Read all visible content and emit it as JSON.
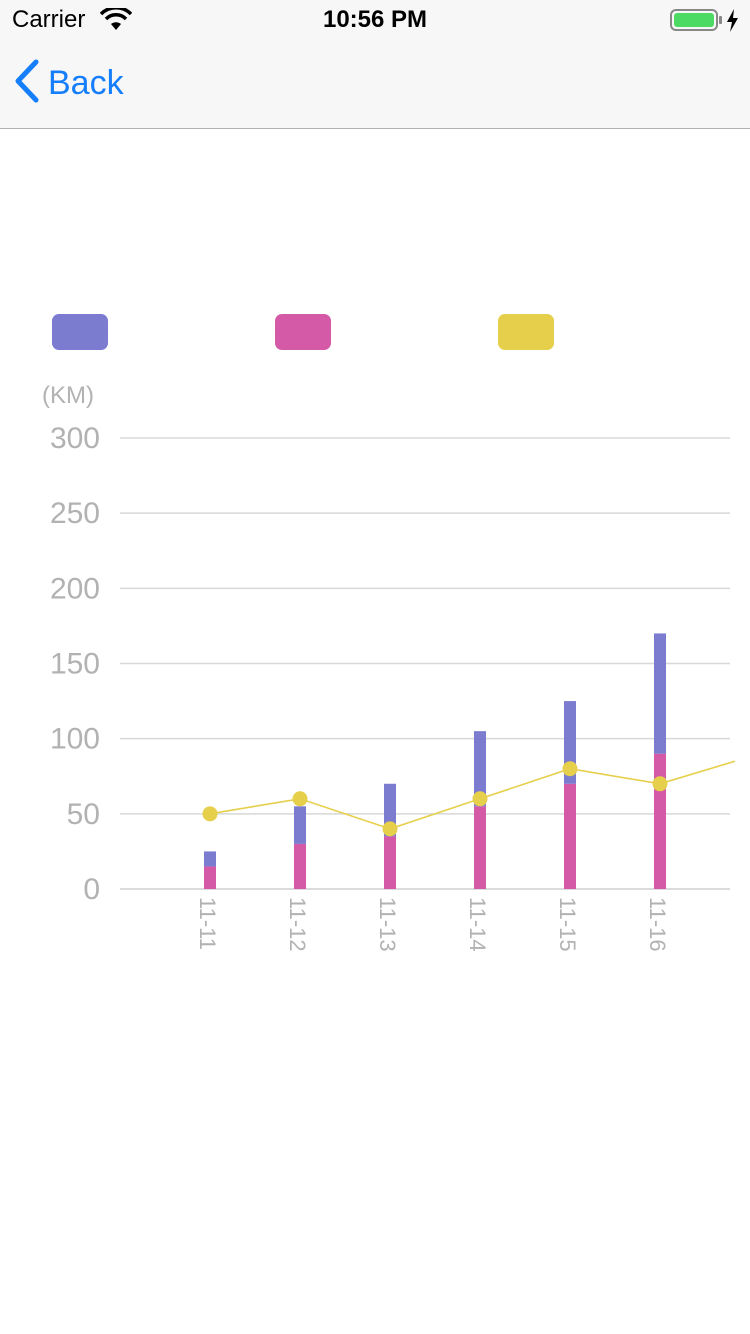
{
  "status_bar": {
    "carrier": "Carrier",
    "time": "10:56 PM",
    "battery_icon": "battery-charging-icon",
    "wifi_icon": "wifi-icon"
  },
  "nav": {
    "back_label": "Back",
    "back_icon": "chevron-left-icon"
  },
  "colors": {
    "accent": "#157efb",
    "series_purple": "#7b7bd0",
    "series_pink": "#d45aa8",
    "series_yellow": "#e6cf4a",
    "grid": "#d8d8d8",
    "axis_text": "#b2b2b2"
  },
  "chart_data": {
    "type": "bar",
    "ylabel": "(KM)",
    "ylim": [
      0,
      300
    ],
    "yticks": [
      "300",
      "250",
      "200",
      "150",
      "100",
      "50",
      "0"
    ],
    "categories": [
      "11-11",
      "11-12",
      "11-13",
      "11-14",
      "11-15",
      "11-16"
    ],
    "stacked": true,
    "series": [
      {
        "type": "bar",
        "color": "#d45aa8",
        "values": [
          15,
          30,
          35,
          55,
          70,
          90
        ]
      },
      {
        "type": "bar",
        "color": "#7b7bd0",
        "values": [
          10,
          25,
          35,
          50,
          55,
          80
        ]
      },
      {
        "type": "line",
        "color": "#e6cf4a",
        "values": [
          50,
          60,
          40,
          60,
          80,
          70
        ],
        "continues_to": 85
      }
    ],
    "grid": true,
    "legend": "top"
  }
}
